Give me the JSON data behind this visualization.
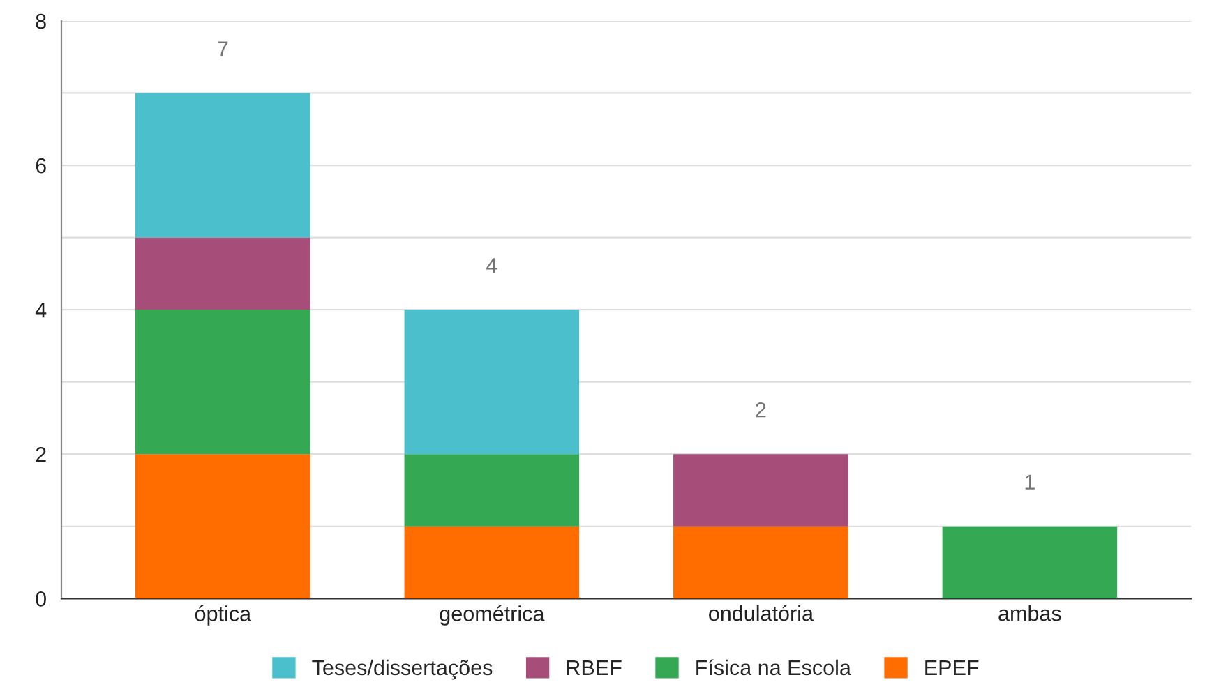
{
  "chart_data": {
    "type": "bar",
    "stacked": true,
    "categories": [
      "óptica",
      "geométrica",
      "ondulatória",
      "ambas"
    ],
    "series": [
      {
        "name": "EPEF",
        "color": "#ff6d01",
        "values": [
          2,
          1,
          1,
          0
        ]
      },
      {
        "name": "Física na Escola",
        "color": "#34a853",
        "values": [
          2,
          1,
          0,
          1
        ]
      },
      {
        "name": "RBEF",
        "color": "#a64d79",
        "values": [
          1,
          0,
          1,
          0
        ]
      },
      {
        "name": "Teses/dissertações",
        "color": "#4bbfcb",
        "values": [
          2,
          2,
          0,
          0
        ]
      }
    ],
    "totals": [
      "7",
      "4",
      "2",
      "1"
    ],
    "ylim": [
      0,
      8
    ],
    "yticks": [
      0,
      {
        "value": 1,
        "label": null
      },
      2,
      {
        "value": 3,
        "label": null
      },
      4,
      {
        "value": 5,
        "label": null
      },
      6,
      {
        "value": 7,
        "label": null
      },
      8
    ],
    "grid": "y",
    "legend": "bottom"
  }
}
